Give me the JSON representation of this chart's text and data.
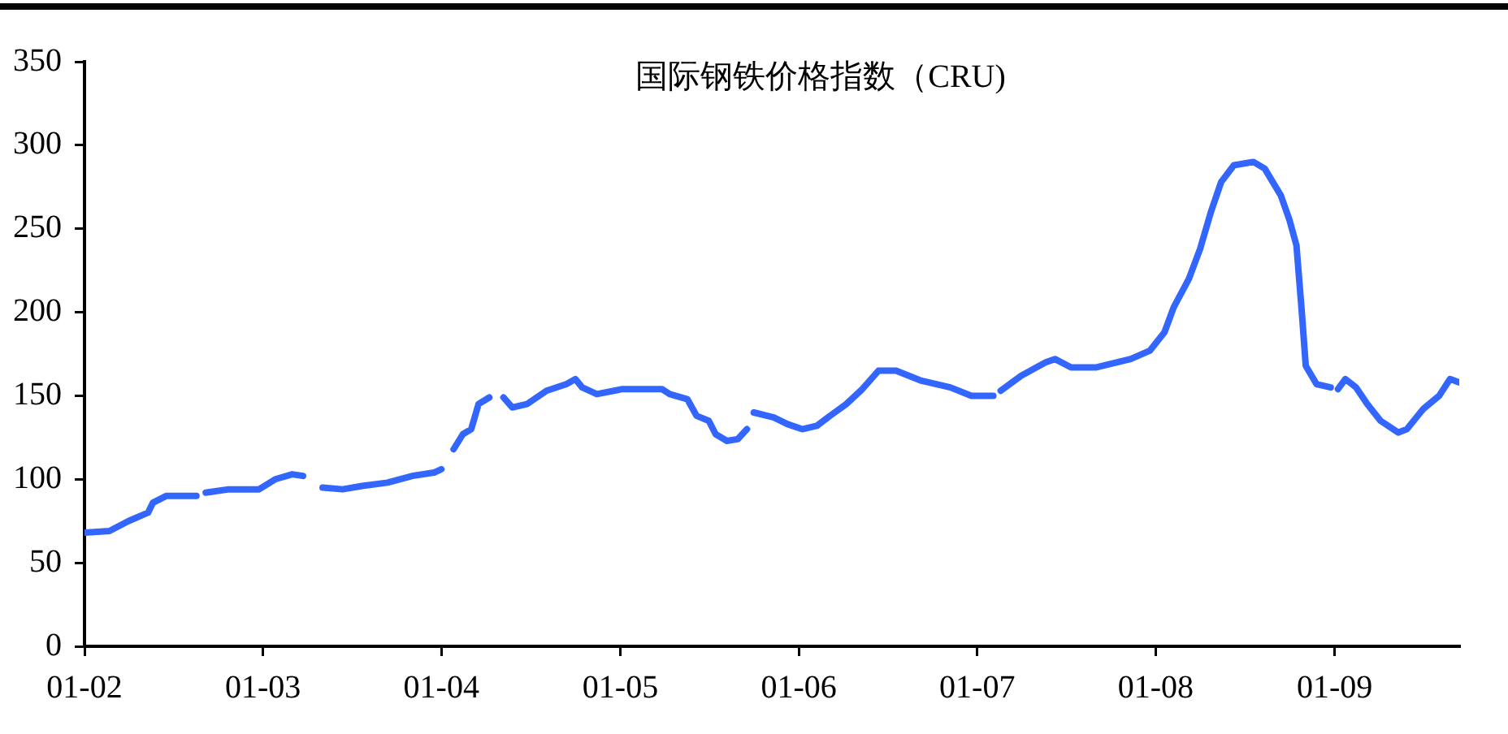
{
  "chart_data": {
    "type": "line",
    "title": "国际钢铁价格指数（CRU)",
    "x": [
      "2002-01-01",
      "2002-02-21",
      "2002-04-01",
      "2002-05-11",
      "2002-05-21",
      "2002-06-17",
      "2002-08-18",
      "2002-08-27",
      "2002-09-06",
      "2002-10-23",
      "2002-12-24",
      "2003-01-26",
      "2003-03-02",
      "2003-03-24",
      "2003-04-14",
      "2003-05-03",
      "2003-06-13",
      "2003-07-23",
      "2003-09-13",
      "2003-11-03",
      "2003-12-17",
      "2004-01-01",
      "2004-01-14",
      "2004-01-26",
      "2004-02-14",
      "2004-03-02",
      "2004-03-17",
      "2004-04-08",
      "2004-04-23",
      "2004-05-07",
      "2004-05-25",
      "2004-06-24",
      "2004-08-03",
      "2004-09-13",
      "2004-10-01",
      "2004-10-15",
      "2004-11-14",
      "2005-01-05",
      "2005-03-27",
      "2005-04-12",
      "2005-05-18",
      "2005-06-06",
      "2005-07-01",
      "2005-07-15",
      "2005-08-07",
      "2005-08-29",
      "2005-09-17",
      "2005-09-24",
      "2005-10-01",
      "2005-11-11",
      "2005-12-09",
      "2006-01-08",
      "2006-02-07",
      "2006-03-06",
      "2006-04-08",
      "2006-05-11",
      "2006-05-29",
      "2006-06-13",
      "2006-07-19",
      "2006-09-09",
      "2006-11-07",
      "2006-12-20",
      "2007-02-03",
      "2007-02-11",
      "2007-02-18",
      "2007-04-01",
      "2007-05-21",
      "2007-06-09",
      "2007-07-12",
      "2007-09-02",
      "2007-11-11",
      "2007-12-20",
      "2008-01-19",
      "2008-02-07",
      "2008-03-09",
      "2008-04-01",
      "2008-04-23",
      "2008-05-14",
      "2008-06-09",
      "2008-07-19",
      "2008-08-11",
      "2008-09-13",
      "2008-10-01",
      "2008-10-15",
      "2008-10-26",
      "2008-11-03",
      "2008-11-25",
      "2008-12-24",
      "2009-01-01",
      "2009-01-08",
      "2009-01-23",
      "2009-02-14",
      "2009-03-09",
      "2009-04-05",
      "2009-05-11",
      "2009-05-29",
      "2009-07-01",
      "2009-08-03",
      "2009-08-25",
      "2009-09-13"
    ],
    "series": [
      {
        "color": "#3366ff",
        "values": [
          68,
          69,
          75,
          80,
          86,
          90,
          90,
          null,
          92,
          94,
          94,
          100,
          103,
          102,
          null,
          95,
          94,
          96,
          98,
          102,
          104,
          106,
          null,
          118,
          127,
          130,
          145,
          149,
          null,
          149,
          143,
          145,
          153,
          157,
          160,
          155,
          151,
          154,
          154,
          151,
          148,
          138,
          135,
          127,
          123,
          124,
          130,
          null,
          140,
          137,
          133,
          130,
          132,
          138,
          145,
          154,
          160,
          165,
          165,
          159,
          155,
          150,
          150,
          null,
          153,
          162,
          170,
          172,
          167,
          167,
          172,
          177,
          188,
          203,
          220,
          238,
          260,
          278,
          288,
          290,
          286,
          270,
          255,
          240,
          200,
          168,
          157,
          155,
          null,
          154,
          160,
          155,
          145,
          135,
          128,
          130,
          142,
          150,
          160,
          158
        ]
      }
    ],
    "xlim": [
      "2002-01-01",
      "2009-09-13"
    ],
    "xticks": [
      {
        "value": "2002-01-01",
        "label": "01-02"
      },
      {
        "value": "2003-01-01",
        "label": "01-03"
      },
      {
        "value": "2004-01-01",
        "label": "01-04"
      },
      {
        "value": "2005-01-01",
        "label": "01-05"
      },
      {
        "value": "2006-01-01",
        "label": "01-06"
      },
      {
        "value": "2007-01-01",
        "label": "01-07"
      },
      {
        "value": "2008-01-01",
        "label": "01-08"
      },
      {
        "value": "2009-01-01",
        "label": "01-09"
      }
    ],
    "ylim": [
      0,
      350
    ],
    "yticks": [
      0,
      50,
      100,
      150,
      200,
      250,
      300,
      350
    ],
    "grid": false,
    "legend": false,
    "marker": "none",
    "line_style": "solid"
  }
}
